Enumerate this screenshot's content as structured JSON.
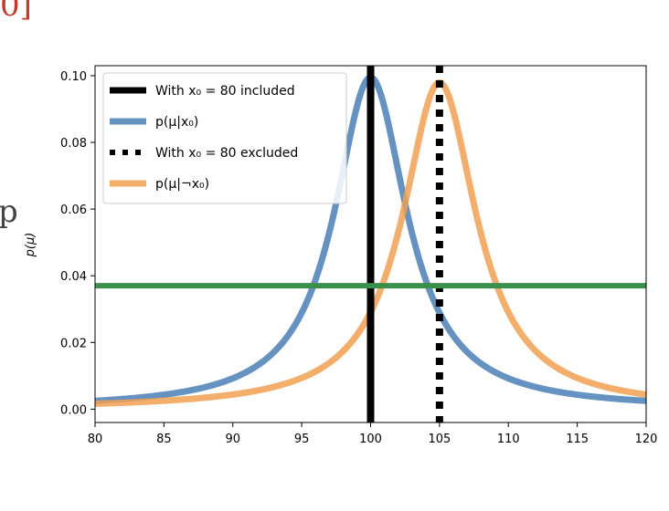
{
  "fragments": {
    "top": "0]",
    "left": "p"
  },
  "chart_data": {
    "type": "line",
    "xlim": [
      80,
      120
    ],
    "ylim": [
      -0.004,
      0.103
    ],
    "xticks": [
      80,
      85,
      90,
      95,
      100,
      105,
      110,
      115,
      120
    ],
    "xtick_labels": [
      "80",
      "85",
      "90",
      "95",
      "100",
      "105",
      "110",
      "115",
      "120"
    ],
    "yticks": [
      0.0,
      0.02,
      0.04,
      0.06,
      0.08,
      0.1
    ],
    "ytick_labels": [
      "0.00",
      "0.02",
      "0.04",
      "0.06",
      "0.08",
      "0.10"
    ],
    "ylabel": "p(μ)",
    "grid": false,
    "legend_position": "top-left",
    "series": [
      {
        "name": "p(μ|x₀)",
        "kind": "cauchy",
        "location": 100,
        "scale": 3.2,
        "color": "#4a7fb5"
      },
      {
        "name": "p(μ|¬x₀)",
        "kind": "cauchy",
        "location": 105,
        "scale": 3.25,
        "color": "#f0a050"
      },
      {
        "name": "threshold",
        "kind": "hline",
        "y": 0.037,
        "color": "#3a8f4a"
      }
    ],
    "vlines": [
      {
        "name": "With x₀ = 80 included",
        "x": 100,
        "style": "solid",
        "color": "#000000"
      },
      {
        "name": "With x₀ = 80 excluded",
        "x": 105,
        "style": "dotted",
        "color": "#000000"
      }
    ],
    "legend": [
      {
        "label": "With x₀ = 80 included",
        "style": "solid",
        "color": "#000000"
      },
      {
        "label": "p(μ|x₀)",
        "style": "solid",
        "color": "#4a7fb5"
      },
      {
        "label": "With x₀ = 80 excluded",
        "style": "dotted",
        "color": "#000000"
      },
      {
        "label": "p(μ|¬x₀)",
        "style": "solid",
        "color": "#f0a050"
      }
    ]
  }
}
